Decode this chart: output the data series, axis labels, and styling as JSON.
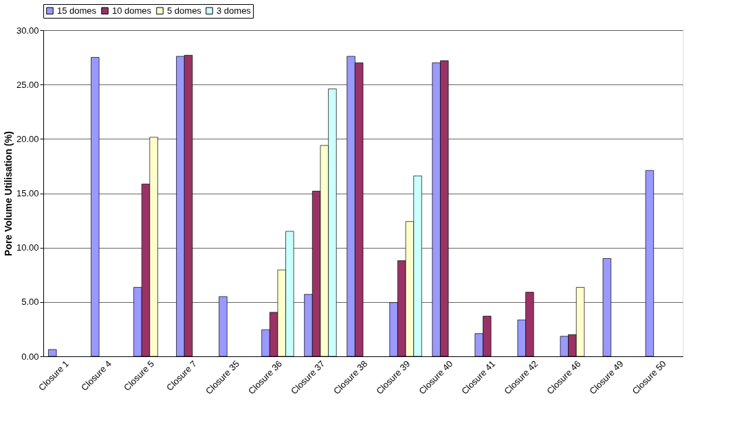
{
  "chart_data": {
    "type": "bar",
    "ylabel": "Pore Volume Utilisation (%)",
    "categories": [
      "Closure 1",
      "Closure 4",
      "Closure 5",
      "Closure 7",
      "Closure 35",
      "Closure 36",
      "Closure 37",
      "Closure 38",
      "Closure 39",
      "Closure 40",
      "Closure 41",
      "Closure 42",
      "Closure 46",
      "Closure 49",
      "Closure 50"
    ],
    "series": [
      {
        "name": "15 domes",
        "color": "#9999ff",
        "values": [
          0.63,
          27.5,
          6.35,
          27.6,
          5.5,
          2.45,
          5.7,
          27.6,
          4.95,
          27.0,
          2.1,
          3.35,
          1.85,
          9.0,
          17.1
        ]
      },
      {
        "name": "10 domes",
        "color": "#993366",
        "values": [
          null,
          null,
          15.85,
          27.7,
          null,
          4.05,
          15.2,
          27.0,
          8.8,
          27.2,
          3.7,
          5.9,
          2.0,
          null,
          null
        ]
      },
      {
        "name": "5 domes",
        "color": "#ffffcc",
        "values": [
          null,
          null,
          20.15,
          null,
          null,
          7.95,
          19.4,
          null,
          12.4,
          null,
          null,
          null,
          6.35,
          null,
          null
        ]
      },
      {
        "name": "3 domes",
        "color": "#ccffff",
        "values": [
          null,
          null,
          null,
          null,
          null,
          11.5,
          24.6,
          null,
          16.6,
          null,
          null,
          null,
          null,
          null,
          null
        ]
      }
    ],
    "ylim": [
      0,
      30
    ],
    "yticks": [
      {
        "value": 0,
        "label": "0.00"
      },
      {
        "value": 5,
        "label": "5.00"
      },
      {
        "value": 10,
        "label": "10.00"
      },
      {
        "value": 15,
        "label": "15.00"
      },
      {
        "value": 20,
        "label": "20.00"
      },
      {
        "value": 25,
        "label": "25.00"
      },
      {
        "value": 30,
        "label": "30.00"
      }
    ],
    "grid": "y",
    "legend": "top"
  }
}
